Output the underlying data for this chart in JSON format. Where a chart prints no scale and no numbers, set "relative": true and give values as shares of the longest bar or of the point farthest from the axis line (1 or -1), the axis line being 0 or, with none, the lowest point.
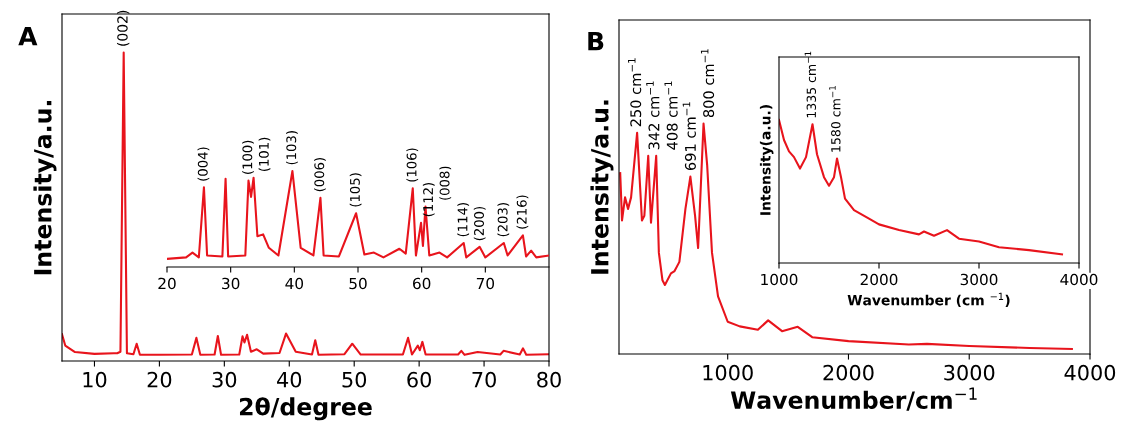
{
  "chart_data": [
    {
      "type": "line",
      "title": "A",
      "xlabel": "2θ/degree",
      "ylabel": "Intensity/a.u.",
      "relative": true,
      "xlim": [
        5,
        80
      ],
      "xticks": [
        10,
        20,
        30,
        40,
        50,
        60,
        70,
        80
      ],
      "x": [
        5,
        5.5,
        7,
        10,
        13,
        13.5,
        14.0,
        14.5,
        15.0,
        16,
        16.5,
        17,
        20,
        25,
        25.7,
        26.3,
        28.5,
        29,
        29.5,
        32.3,
        32.8,
        33.1,
        33.5,
        34.1,
        35,
        36,
        38.5,
        39.5,
        41,
        43.5,
        44,
        44.5,
        48.5,
        49.7,
        51,
        57.5,
        58.3,
        58.9,
        59.8,
        60.1,
        60.5,
        61,
        66,
        66.5,
        67,
        69,
        72.5,
        73,
        75.5,
        76,
        76.5,
        80
      ],
      "series": [
        {
          "color": "#e8141c",
          "values": [
            0.087,
            0.05,
            0.029,
            0.023,
            0.025,
            0.025,
            0.03,
            1.0,
            0.025,
            0.022,
            0.056,
            0.02,
            0.02,
            0.021,
            0.075,
            0.02,
            0.021,
            0.081,
            0.02,
            0.021,
            0.08,
            0.06,
            0.085,
            0.03,
            0.038,
            0.024,
            0.026,
            0.089,
            0.03,
            0.021,
            0.067,
            0.02,
            0.022,
            0.056,
            0.021,
            0.021,
            0.075,
            0.021,
            0.05,
            0.035,
            0.062,
            0.021,
            0.021,
            0.033,
            0.02,
            0.029,
            0.021,
            0.033,
            0.021,
            0.041,
            0.02,
            0.022
          ]
        }
      ],
      "annotations": [
        {
          "text": "(002)",
          "x": 14.5,
          "y": 1.0
        }
      ]
    },
    {
      "type": "line",
      "relative": true,
      "xlim": [
        20,
        80
      ],
      "xticks": [
        20,
        30,
        40,
        50,
        60,
        70
      ],
      "x": [
        20,
        23,
        24,
        25,
        25.8,
        26.3,
        28.7,
        29.2,
        29.6,
        32.3,
        32.8,
        33.2,
        33.6,
        34.2,
        35.1,
        36,
        37.5,
        39.7,
        41,
        43,
        44.1,
        44.6,
        47,
        49.7,
        51,
        52.5,
        54,
        56.5,
        57.5,
        58.6,
        59.1,
        59.9,
        60.2,
        60.6,
        61.2,
        62.8,
        64,
        66.6,
        67,
        69.1,
        70,
        72.9,
        73.5,
        75.9,
        76.4,
        77.2,
        78,
        80
      ],
      "series": [
        {
          "color": "#e8141c",
          "values": [
            0.085,
            0.1,
            0.15,
            0.1,
            0.83,
            0.12,
            0.11,
            0.92,
            0.11,
            0.12,
            0.9,
            0.73,
            0.93,
            0.32,
            0.34,
            0.2,
            0.12,
            1.0,
            0.2,
            0.12,
            0.72,
            0.12,
            0.11,
            0.56,
            0.13,
            0.15,
            0.1,
            0.19,
            0.14,
            0.82,
            0.12,
            0.46,
            0.22,
            0.63,
            0.12,
            0.15,
            0.1,
            0.25,
            0.1,
            0.21,
            0.1,
            0.25,
            0.12,
            0.33,
            0.11,
            0.17,
            0.1,
            0.12
          ]
        }
      ],
      "annotations": [
        {
          "text": "(004)",
          "x": 25.8,
          "y": 0.83
        },
        {
          "text": "(100)",
          "x": 32.8,
          "y": 0.9
        },
        {
          "text": "(101)",
          "x": 33.6,
          "y": 0.93
        },
        {
          "text": "(103)",
          "x": 39.7,
          "y": 1.0
        },
        {
          "text": "(006)",
          "x": 44.1,
          "y": 0.72
        },
        {
          "text": "(105)",
          "x": 49.7,
          "y": 0.56
        },
        {
          "text": "(106)",
          "x": 58.6,
          "y": 0.82
        },
        {
          "text": "(112)",
          "x": 59.9,
          "y": 0.46
        },
        {
          "text": "(008)",
          "x": 60.6,
          "y": 0.63
        },
        {
          "text": "(114)",
          "x": 66.6,
          "y": 0.25
        },
        {
          "text": "(200)",
          "x": 69.1,
          "y": 0.21
        },
        {
          "text": "(203)",
          "x": 72.9,
          "y": 0.25
        },
        {
          "text": "(216)",
          "x": 75.9,
          "y": 0.33
        }
      ]
    },
    {
      "type": "line",
      "title": "B",
      "xlabel": "Wavenumber/cm$^{−1}$",
      "ylabel": "Intensity/a.u.",
      "relative": true,
      "xlim": [
        100,
        4000
      ],
      "xticks": [
        1000,
        2000,
        3000,
        4000
      ],
      "x": [
        110,
        125,
        150,
        175,
        200,
        250,
        290,
        310,
        342,
        365,
        408,
        430,
        460,
        480,
        530,
        560,
        600,
        650,
        691,
        730,
        755,
        780,
        800,
        830,
        870,
        920,
        1000,
        1100,
        1250,
        1335,
        1450,
        1580,
        1700,
        2000,
        2500,
        2650,
        3000,
        3500,
        3850
      ],
      "series": [
        {
          "color": "#e8141c",
          "values": [
            0.785,
            0.58,
            0.68,
            0.63,
            0.68,
            0.96,
            0.58,
            0.6,
            0.86,
            0.57,
            0.86,
            0.44,
            0.32,
            0.3,
            0.35,
            0.36,
            0.4,
            0.63,
            0.77,
            0.6,
            0.46,
            0.76,
            1.0,
            0.82,
            0.44,
            0.25,
            0.14,
            0.12,
            0.105,
            0.146,
            0.099,
            0.118,
            0.073,
            0.056,
            0.041,
            0.044,
            0.035,
            0.026,
            0.022
          ]
        }
      ],
      "annotations": [
        {
          "text": "250 cm$^{−1}$",
          "x": 250,
          "y": 0.96
        },
        {
          "text": "342 cm$^{−1}$",
          "x": 342,
          "y": 0.86
        },
        {
          "text": "408 cm$^{−1}$",
          "x": 408,
          "y": 0.86
        },
        {
          "text": "691 cm$^{−1}$",
          "x": 691,
          "y": 0.77
        },
        {
          "text": "800 cm$^{−1}$",
          "x": 800,
          "y": 1.0
        }
      ]
    },
    {
      "type": "line",
      "xlabel": "Wavenumber (cm $^{−1}$)",
      "ylabel": "Intensity(a.u.)",
      "relative": true,
      "xlim": [
        1000,
        4000
      ],
      "xticks": [
        1000,
        2000,
        3000,
        4000
      ],
      "x": [
        1000,
        1050,
        1100,
        1150,
        1210,
        1270,
        1335,
        1380,
        1450,
        1500,
        1550,
        1580,
        1620,
        1660,
        1750,
        1900,
        2000,
        2200,
        2400,
        2450,
        2550,
        2680,
        2800,
        3000,
        3200,
        3500,
        3830
      ],
      "series": [
        {
          "color": "#e8141c",
          "values": [
            1.0,
            0.86,
            0.78,
            0.74,
            0.66,
            0.74,
            0.97,
            0.76,
            0.6,
            0.54,
            0.6,
            0.73,
            0.6,
            0.45,
            0.37,
            0.31,
            0.27,
            0.23,
            0.2,
            0.22,
            0.19,
            0.23,
            0.17,
            0.15,
            0.11,
            0.09,
            0.06
          ]
        }
      ],
      "annotations": [
        {
          "text": "1335 cm$^{−1}$",
          "x": 1335,
          "y": 0.97
        },
        {
          "text": "1580 cm$^{−1}$",
          "x": 1580,
          "y": 0.73
        }
      ]
    }
  ]
}
